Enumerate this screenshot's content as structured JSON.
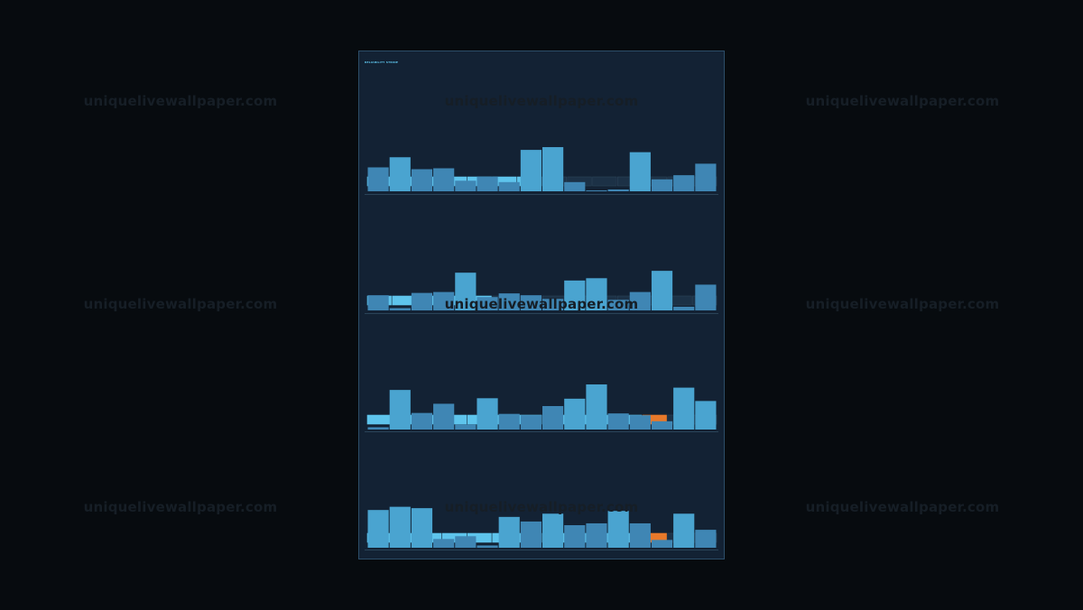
{
  "watermark": "uniquelivewallpaper.com",
  "panel": {
    "title": "RELIABILITY STRIDE",
    "footer": ""
  },
  "colors": {
    "background": "#070b0f",
    "panel": "#132234",
    "border": "#2c4d68",
    "accent": "#5ec4ec",
    "bar": "#4aa4d0",
    "bar_dim": "#3f86b4",
    "empty_segment": "#1c3146",
    "alert": "#e8792a"
  },
  "chart_data": [
    {
      "type": "bar",
      "title": "",
      "progress": {
        "total": 14,
        "filled": 7,
        "alert_index": null
      },
      "values": [
        5.2,
        7.4,
        4.8,
        5.0,
        2.3,
        3.2,
        2.0,
        9.0,
        9.6,
        2.0,
        0.2,
        0.4,
        8.5,
        2.6,
        3.5,
        6.0
      ],
      "ylim": [
        0,
        10
      ]
    },
    {
      "type": "bar",
      "title": "",
      "progress": {
        "total": 14,
        "filled": 5,
        "alert_index": null
      },
      "values": [
        3.3,
        0.5,
        3.8,
        4.0,
        8.2,
        2.9,
        3.7,
        3.3,
        2.5,
        6.5,
        7.0,
        2.3,
        4.0,
        8.6,
        0.8,
        5.6
      ],
      "ylim": [
        0,
        10
      ]
    },
    {
      "type": "bar",
      "title": "",
      "progress": {
        "total": 14,
        "filled": 11,
        "alert_index": 11
      },
      "values": [
        0.5,
        8.6,
        3.6,
        5.6,
        1.1,
        6.8,
        3.4,
        3.1,
        5.1,
        6.7,
        9.8,
        3.5,
        3.1,
        1.8,
        9.1,
        6.2
      ],
      "ylim": [
        0,
        10
      ]
    },
    {
      "type": "bar",
      "title": "",
      "progress": {
        "total": 14,
        "filled": 11,
        "alert_index": 11
      },
      "values": [
        8.2,
        8.9,
        8.6,
        1.9,
        2.5,
        0.5,
        6.7,
        5.7,
        7.4,
        4.9,
        5.3,
        8.0,
        5.3,
        1.7,
        7.4,
        3.9
      ],
      "ylim": [
        0,
        10
      ]
    }
  ]
}
